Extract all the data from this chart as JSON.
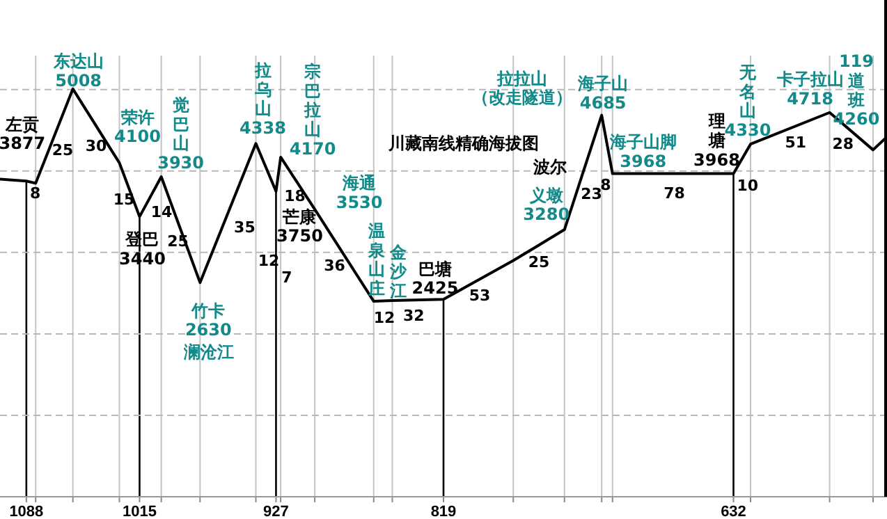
{
  "chart_data": {
    "type": "line",
    "title": "川藏南线精确海拔图",
    "x": [
      1105,
      1088,
      1082,
      1058,
      1028,
      1015,
      1001,
      976,
      940,
      927,
      924,
      902,
      864,
      852,
      819,
      774,
      741,
      717,
      710,
      632,
      621,
      570,
      542,
      533
    ],
    "series": [
      {
        "color": "#000000",
        "values": [
          3900,
          3877,
          3850,
          5008,
          4100,
          3440,
          3930,
          2630,
          4338,
          3750,
          4170,
          3530,
          2400,
          2410,
          2425,
          2900,
          3280,
          4685,
          3968,
          3968,
          4330,
          4718,
          4260,
          4420
        ],
        "value_labels": [
          null,
          "3877",
          null,
          "5008",
          "4100",
          "3440",
          "3930",
          "2630",
          "4338",
          "3750",
          "4170",
          "3530",
          null,
          null,
          "2425",
          null,
          "3280",
          "4685",
          "3968",
          "3968",
          "4330",
          "4718",
          "4260",
          null
        ]
      }
    ],
    "xlim": [
      1105,
      533
    ],
    "ylim": [
      0,
      6100
    ],
    "xticks": [
      1088,
      {
        "value": 1082,
        "label": null
      },
      {
        "value": 1058,
        "label": null
      },
      {
        "value": 1028,
        "label": null
      },
      1015,
      {
        "value": 1001,
        "label": null
      },
      {
        "value": 976,
        "label": null
      },
      {
        "value": 940,
        "label": null
      },
      927,
      {
        "value": 924,
        "label": null
      },
      {
        "value": 902,
        "label": null
      },
      {
        "value": 864,
        "label": null
      },
      {
        "value": 852,
        "label": null
      },
      819,
      {
        "value": 774,
        "label": null
      },
      {
        "value": 741,
        "label": null
      },
      {
        "value": 717,
        "label": null
      },
      {
        "value": 710,
        "label": null
      },
      632,
      {
        "value": 621,
        "label": null
      },
      {
        "value": 570,
        "label": null
      },
      {
        "value": 542,
        "label": null
      }
    ],
    "yticks": [
      {
        "value": 1000,
        "label": null
      },
      {
        "value": 2000,
        "label": null
      },
      {
        "value": 3000,
        "label": null
      },
      {
        "value": 4000,
        "label": null
      },
      {
        "value": 5000,
        "label": null
      }
    ],
    "grid": true,
    "annotations": [
      {
        "text": "左贡",
        "x": 1088,
        "y": 3877
      },
      {
        "text": "东达山",
        "x": 1058,
        "y": 5008
      },
      {
        "text": "荣许",
        "x": 1028,
        "y": 4100
      },
      {
        "text": "登巴",
        "x": 1015,
        "y": 3440
      },
      {
        "text": "觉巴山",
        "x": 1001,
        "y": 3930
      },
      {
        "text": "竹卡",
        "x": 976,
        "y": 2630
      },
      "澜沧江",
      {
        "text": "拉乌山",
        "x": 940,
        "y": 4338
      },
      {
        "text": "芒康",
        "x": 927,
        "y": 3750
      },
      {
        "text": "宗巴拉山",
        "x": 924,
        "y": 4170
      },
      {
        "text": "海通",
        "x": 902,
        "y": 3530
      },
      {
        "text": "温泉山庄",
        "x": 864,
        "y": 2400
      },
      {
        "text": "金沙江",
        "x": 852,
        "y": 2410
      },
      {
        "text": "巴塘",
        "x": 819,
        "y": 2425
      },
      "拉拉山（改走隧道）",
      {
        "text": "义墩",
        "x": 741,
        "y": 3280
      },
      {
        "text": "海子山",
        "x": 717,
        "y": 4685
      },
      {
        "text": "海子山脚",
        "x": 710,
        "y": 3968
      },
      {
        "text": "理塘",
        "x": 632,
        "y": 3968
      },
      {
        "text": "无名山",
        "x": 621,
        "y": 4330
      },
      {
        "text": "卡子拉山",
        "x": 570,
        "y": 4718
      },
      {
        "text": "119道班",
        "x": 542,
        "y": 4260
      },
      {
        "text": "8",
        "x": 1085,
        "y": 3863.5
      },
      {
        "text": "25",
        "x": 1070,
        "y": 4429
      },
      {
        "text": "30",
        "x": 1043,
        "y": 4554
      },
      {
        "text": "15",
        "x": 1021.5,
        "y": 3770
      },
      {
        "text": "14",
        "x": 1008,
        "y": 3685
      },
      {
        "text": "25",
        "x": 988.5,
        "y": 3280
      },
      {
        "text": "35",
        "x": 958,
        "y": 3484
      },
      "12",
      "7",
      {
        "text": "18",
        "x": 913,
        "y": 3850
      },
      {
        "text": "36",
        "x": 883,
        "y": 2965
      },
      {
        "text": "12",
        "x": 858,
        "y": 2405
      },
      {
        "text": "32",
        "x": 835.5,
        "y": 2417.5
      },
      {
        "text": "53",
        "x": 796.5,
        "y": 2662.5
      },
      {
        "text": "25",
        "x": 757.5,
        "y": 3090
      },
      {
        "text": "23",
        "x": 729,
        "y": 3982.5
      },
      {
        "text": "8",
        "x": 713.5,
        "y": 4326.5
      },
      {
        "text": "78",
        "x": 671,
        "y": 3968
      },
      {
        "text": "10",
        "x": 626.5,
        "y": 4149
      },
      {
        "text": "51",
        "x": 595.5,
        "y": 4524
      },
      {
        "text": "28",
        "x": 556,
        "y": 4489
      },
      "波尔"
    ]
  }
}
